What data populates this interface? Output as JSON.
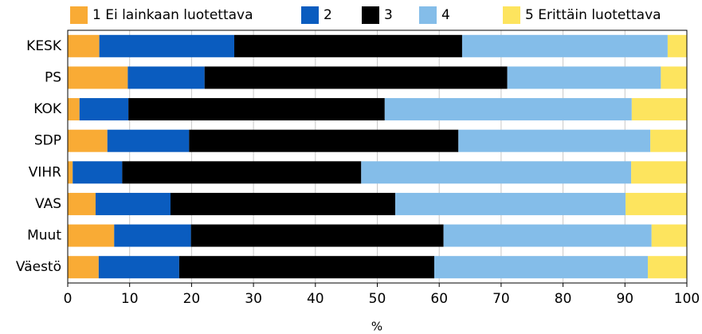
{
  "chart_data": {
    "type": "stacked_bar_horizontal",
    "x_label": "%",
    "categories": [
      "KESK",
      "PS",
      "KOK",
      "SDP",
      "VIHR",
      "VAS",
      "Muut",
      "Väestö"
    ],
    "series": [
      {
        "name": "1 Ei lainkaan luotettava",
        "color": "#f9ab35",
        "values": [
          5.1,
          9.7,
          1.9,
          6.4,
          0.8,
          4.5,
          7.5,
          5.0
        ]
      },
      {
        "name": "2",
        "color": "#0a5cbf",
        "values": [
          21.8,
          12.4,
          7.9,
          13.2,
          8.0,
          12.1,
          12.4,
          13.0
        ]
      },
      {
        "name": "3",
        "color": "#000000",
        "values": [
          36.8,
          48.9,
          41.4,
          43.5,
          38.6,
          36.3,
          40.8,
          41.2
        ]
      },
      {
        "name": "4",
        "color": "#84bde9",
        "values": [
          33.2,
          24.8,
          39.9,
          31.0,
          43.6,
          37.2,
          33.6,
          34.5
        ]
      },
      {
        "name": "5 Erittäin luotettava",
        "color": "#fde45e",
        "values": [
          3.1,
          4.2,
          8.9,
          5.9,
          9.0,
          9.9,
          5.7,
          6.3
        ]
      }
    ],
    "xlim": [
      0,
      100
    ],
    "xticks": [
      0,
      10,
      20,
      30,
      40,
      50,
      60,
      70,
      80,
      90,
      100
    ],
    "grid": true
  }
}
